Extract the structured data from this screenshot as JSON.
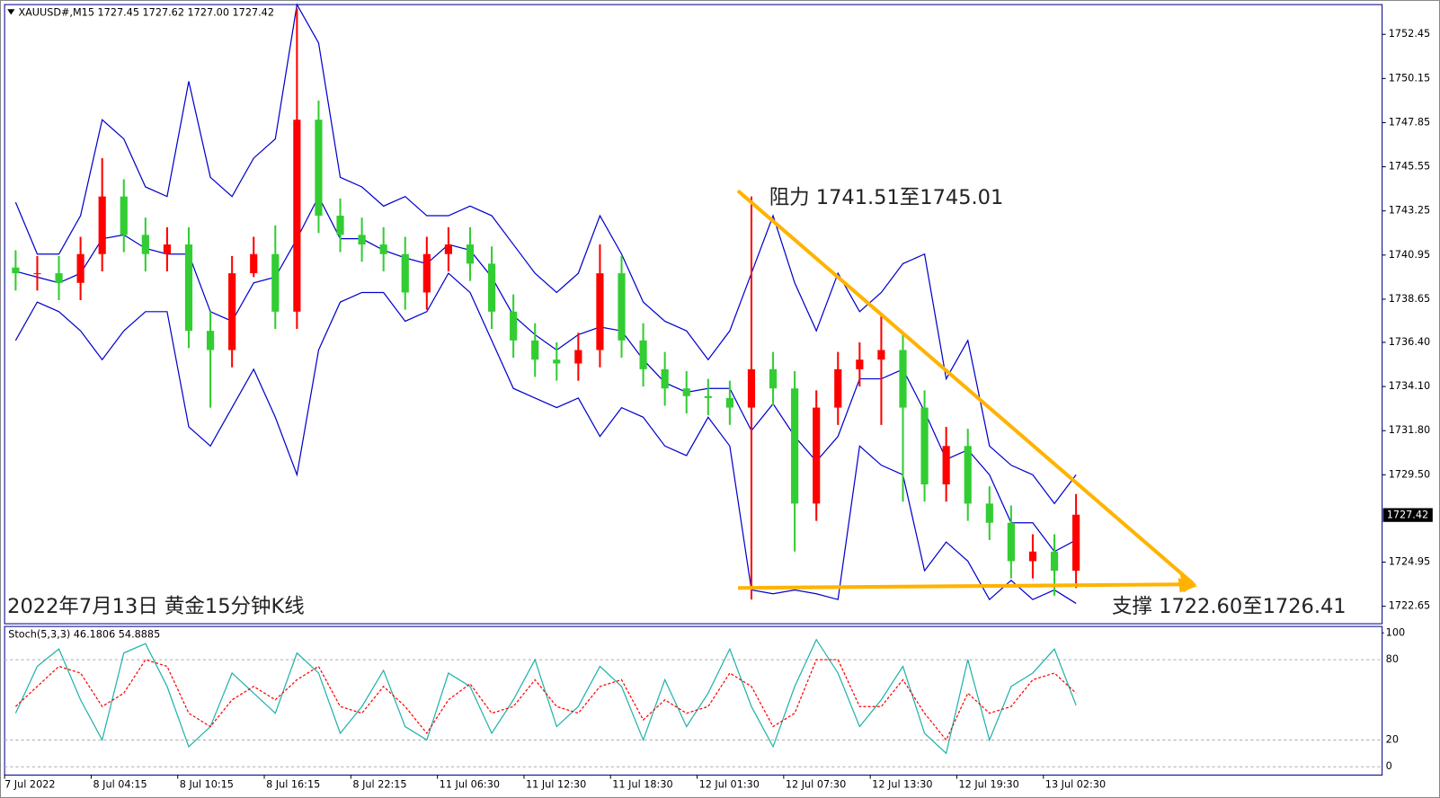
{
  "chart_data": [
    {
      "type": "candlestick",
      "header": "XAUUSD#,M15  1727.45 1727.62 1727.00 1727.42",
      "current_price": "1727.42",
      "annotations": [
        "阻力 1741.51至1745.01",
        "支撑 1722.60至1726.41",
        "2022年7月13日 黄金15分钟K线"
      ],
      "categories": [
        "7 Jul 2022",
        null,
        null,
        null,
        "8 Jul 04:15",
        null,
        null,
        null,
        "8 Jul 10:15",
        null,
        null,
        null,
        "8 Jul 16:15",
        null,
        null,
        null,
        "8 Jul 22:15",
        null,
        null,
        null,
        "11 Jul 06:30",
        null,
        null,
        null,
        "11 Jul 12:30",
        null,
        null,
        null,
        "11 Jul 18:30",
        null,
        null,
        null,
        "12 Jul 01:30",
        null,
        null,
        null,
        "12 Jul 07:30",
        null,
        null,
        null,
        "12 Jul 13:30",
        null,
        null,
        null,
        "12 Jul 19:30",
        null,
        null,
        null,
        "13 Jul 02:30",
        null
      ],
      "open": [
        1740.3,
        1740,
        1740,
        1739.5,
        1741,
        1744,
        1742,
        1741,
        1741.5,
        1737,
        1736,
        1740,
        1741,
        1738,
        1748,
        1743,
        1742,
        1741.5,
        1741,
        1739,
        1741,
        1741.5,
        1740.5,
        1738,
        1736.5,
        1735.5,
        1735.3,
        1736,
        1740,
        1736.5,
        1735,
        1734,
        1733.6,
        1733.5,
        1733,
        1735,
        1734,
        1728,
        1733,
        1735,
        1735.5,
        1736,
        1733,
        1729,
        1731,
        1728,
        1727,
        1725,
        1725.5,
        1724.5
      ],
      "high": [
        1741.2,
        1740.9,
        1740.9,
        1741.9,
        1746,
        1744.9,
        1742.9,
        1742.4,
        1742.4,
        1738,
        1740.9,
        1741.9,
        1742.5,
        1753.8,
        1749,
        1743.9,
        1742.9,
        1742.4,
        1741.9,
        1741.9,
        1742.4,
        1742.4,
        1741.4,
        1738.9,
        1737.4,
        1736.4,
        1736.9,
        1741.5,
        1740.9,
        1737.4,
        1735.9,
        1734.9,
        1734.5,
        1734.4,
        1744,
        1735.9,
        1734.9,
        1733.9,
        1735.9,
        1736.4,
        1737.8,
        1736.9,
        1733.9,
        1732,
        1731.9,
        1728.9,
        1727.9,
        1726.4,
        1726.4,
        1728.5
      ],
      "low": [
        1739.1,
        1739.1,
        1738.6,
        1738.6,
        1740.1,
        1741.1,
        1740.1,
        1740.1,
        1736.1,
        1733,
        1735.1,
        1739.8,
        1737.1,
        1737.1,
        1742.1,
        1741.1,
        1740.6,
        1740.1,
        1738.1,
        1738.1,
        1740.1,
        1739.6,
        1737.1,
        1735.6,
        1734.6,
        1734.4,
        1734.4,
        1735.1,
        1735.6,
        1734.1,
        1733.1,
        1732.7,
        1732.6,
        1732.1,
        1723,
        1733.1,
        1725.5,
        1727.1,
        1732.1,
        1734.1,
        1732.1,
        1728.1,
        1728.1,
        1728.1,
        1727.1,
        1726.1,
        1724.1,
        1724.1,
        1723.2,
        1723.6
      ],
      "close": [
        1740,
        1740,
        1739.5,
        1741,
        1744,
        1742,
        1741,
        1741.5,
        1737,
        1736,
        1740,
        1741,
        1738,
        1748,
        1743,
        1742,
        1741.5,
        1741,
        1739,
        1741,
        1741.5,
        1740.5,
        1738,
        1736.5,
        1735.5,
        1735.3,
        1736,
        1740,
        1736.5,
        1735,
        1734,
        1733.6,
        1733.5,
        1733,
        1735,
        1734,
        1728,
        1733,
        1735,
        1735.5,
        1736,
        1733,
        1729,
        1731,
        1728,
        1727,
        1725,
        1725.5,
        1724.5,
        1727.42
      ],
      "up_color": "#ff0000",
      "down_color": "#32cd32",
      "bands": [
        {
          "color": "#0000cd",
          "values": [
            1743.7,
            1741,
            1741,
            1743,
            1748,
            1747,
            1744.5,
            1744,
            1750,
            1745,
            1744,
            1746,
            1747,
            1754,
            1752,
            1745,
            1744.5,
            1743.5,
            1744,
            1743,
            1743,
            1743.5,
            1743,
            1741.5,
            1740,
            1739,
            1740,
            1743,
            1741,
            1738.5,
            1737.5,
            1737,
            1735.5,
            1737,
            1740,
            1743,
            1739.5,
            1737,
            1740,
            1738,
            1739,
            1740.5,
            1741,
            1734.5,
            1736.5,
            1731,
            1730,
            1729.5,
            1728,
            1729.5
          ]
        },
        {
          "color": "#0000cd",
          "values": [
            1740.1,
            1739.8,
            1739.5,
            1740,
            1741.8,
            1742,
            1741.3,
            1741,
            1741,
            1738,
            1737.5,
            1739.5,
            1739.8,
            1741.8,
            1744,
            1741.8,
            1741.8,
            1741.2,
            1740.8,
            1740.5,
            1741.5,
            1741.2,
            1739.8,
            1737.8,
            1736.8,
            1736,
            1736.8,
            1737.2,
            1737,
            1735.5,
            1734.3,
            1733.8,
            1734,
            1734,
            1731.8,
            1733.2,
            1731.5,
            1730.2,
            1731.5,
            1734.5,
            1734.5,
            1735,
            1732.8,
            1730.3,
            1730.8,
            1729.5,
            1727,
            1727,
            1725.5,
            1726.1
          ]
        },
        {
          "color": "#0000cd",
          "values": [
            1736.5,
            1738.5,
            1738,
            1737,
            1735.5,
            1737,
            1738,
            1738,
            1732,
            1731,
            1733,
            1735,
            1732.5,
            1729.5,
            1736,
            1738.5,
            1739,
            1739,
            1737.5,
            1738,
            1740,
            1739,
            1736.5,
            1734,
            1733.5,
            1733,
            1733.5,
            1731.5,
            1733,
            1732.5,
            1731,
            1730.5,
            1732.5,
            1731,
            1723.5,
            1723.3,
            1723.5,
            1723.3,
            1723,
            1731,
            1730,
            1729.5,
            1724.5,
            1726,
            1725,
            1723,
            1724,
            1723,
            1723.5,
            1722.8
          ]
        }
      ],
      "ylim": [
        1721.74,
        1754.0
      ],
      "yticks": [
        {
          "value": 1722.65,
          "label": "1722.65"
        },
        {
          "value": 1724.95,
          "label": "1724.95"
        },
        {
          "value": 1729.5,
          "label": "1729.50"
        },
        {
          "value": 1731.8,
          "label": "1731.80"
        },
        {
          "value": 1734.1,
          "label": "1734.10"
        },
        {
          "value": 1736.4,
          "label": "1736.40"
        },
        {
          "value": 1738.65,
          "label": "1738.65"
        },
        {
          "value": 1740.95,
          "label": "1740.95"
        },
        {
          "value": 1743.25,
          "label": "1743.25"
        },
        {
          "value": 1745.55,
          "label": "1745.55"
        },
        {
          "value": 1747.85,
          "label": "1747.85"
        },
        {
          "value": 1750.15,
          "label": "1750.15"
        },
        {
          "value": 1752.45,
          "label": "1752.45"
        }
      ]
    },
    {
      "type": "line",
      "title": "Stoch(5,3,3) 46.1806 54.8885",
      "series": [
        {
          "color": "#20b2aa",
          "values": [
            40,
            75,
            88,
            50,
            20,
            85,
            92,
            60,
            15,
            30,
            70,
            55,
            40,
            85,
            70,
            25,
            45,
            72,
            30,
            20,
            70,
            60,
            25,
            50,
            80,
            30,
            45,
            75,
            60,
            20,
            65,
            30,
            55,
            88,
            45,
            15,
            60,
            95,
            70,
            30,
            50,
            75,
            25,
            10,
            80,
            20,
            60,
            70,
            88,
            46
          ]
        },
        {
          "color": "#ff0000",
          "dash": true,
          "values": [
            45,
            60,
            75,
            70,
            45,
            55,
            80,
            75,
            40,
            30,
            50,
            60,
            50,
            65,
            75,
            45,
            40,
            60,
            45,
            25,
            50,
            62,
            40,
            45,
            65,
            45,
            40,
            60,
            65,
            35,
            50,
            40,
            45,
            70,
            60,
            30,
            40,
            80,
            80,
            45,
            45,
            65,
            40,
            20,
            55,
            40,
            45,
            65,
            70,
            55
          ]
        }
      ],
      "ylim": [
        -6.2,
        104.8
      ],
      "yticks": [
        0,
        20,
        80,
        100
      ]
    }
  ]
}
